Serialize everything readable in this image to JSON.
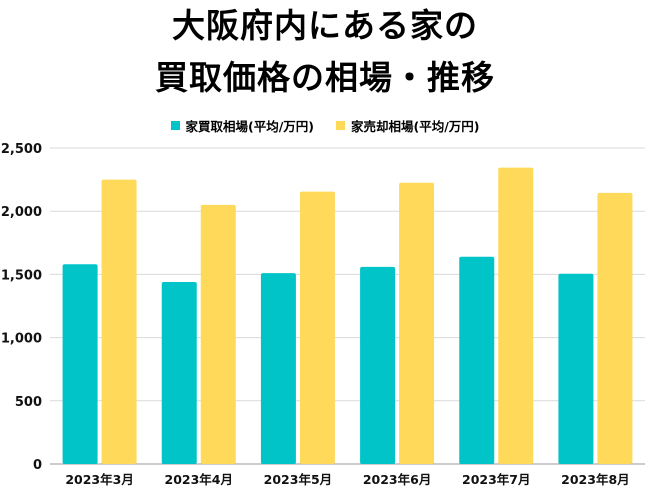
{
  "title": [
    "大阪府内にある家の",
    "買取価格の相場・推移"
  ],
  "chart_data": {
    "type": "bar",
    "categories": [
      "2023年3月",
      "2023年4月",
      "2023年5月",
      "2023年6月",
      "2023年7月",
      "2023年8月"
    ],
    "series": [
      {
        "name": "家買取相場(平均/万円)",
        "color": "#00c4c8",
        "values": [
          1580,
          1440,
          1510,
          1560,
          1640,
          1505
        ]
      },
      {
        "name": "家売却相場(平均/万円)",
        "color": "#ffd95a",
        "values": [
          2250,
          2050,
          2155,
          2225,
          2345,
          2145
        ]
      }
    ],
    "ylim": [
      0,
      2500
    ],
    "yticks": [
      0,
      500,
      1000,
      1500,
      2000,
      2500
    ],
    "ytick_labels": [
      "0",
      "500",
      "1,000",
      "1,500",
      "2,000",
      "2,500"
    ],
    "grid": true,
    "legend_position": "top"
  }
}
